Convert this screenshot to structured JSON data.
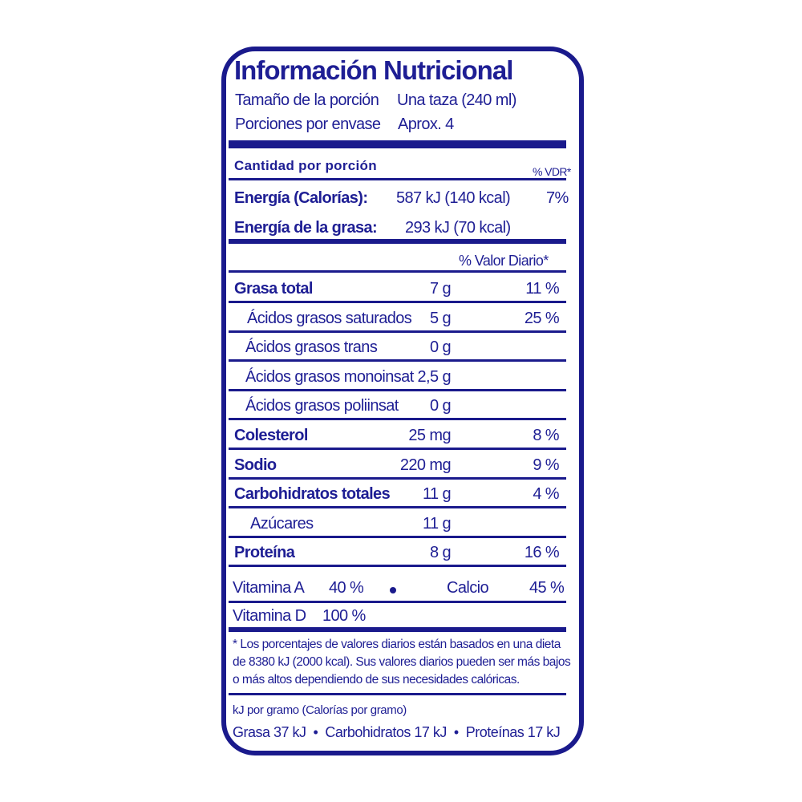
{
  "title": "Información Nutricional",
  "serving": {
    "size_label": "Tamaño de la porción",
    "size_value": "Una taza (240 ml)",
    "per_container_label": "Porciones por envase",
    "per_container_value": "Aprox. 4"
  },
  "amount_header": {
    "label": "Cantidad por porción",
    "vdr": "% VDR*"
  },
  "energy": [
    {
      "label": "Energía (Calorías):",
      "value": "587 kJ (140 kcal)",
      "percent": "7%"
    },
    {
      "label": "Energía de la grasa:",
      "value": "293 kJ (70 kcal)"
    }
  ],
  "daily_value_header": "% Valor Diario*",
  "nutrients": [
    {
      "label": "Grasa total",
      "amount": "7 g",
      "percent": "11 %",
      "bold": true
    },
    {
      "label": "Ácidos grasos saturados",
      "amount": "5 g",
      "percent": "25 %"
    },
    {
      "label": "Ácidos grasos trans",
      "amount": "0 g",
      "percent": ""
    },
    {
      "label": "Ácidos grasos monoinsat",
      "amount": "2,5 g",
      "percent": ""
    },
    {
      "label": "Ácidos grasos poliinsat",
      "amount": "0 g",
      "percent": ""
    },
    {
      "label": "Colesterol",
      "amount": "25 mg",
      "percent": "8 %",
      "bold": true
    },
    {
      "label": "Sodio",
      "amount": "220 mg",
      "percent": "9 %",
      "bold": true
    },
    {
      "label": "Carbohidratos totales",
      "amount": "11 g",
      "percent": "4 %",
      "bold": true
    },
    {
      "label": "Azúcares",
      "amount": "11 g",
      "percent": ""
    },
    {
      "label": "Proteína",
      "amount": "8 g",
      "percent": "16 %",
      "bold": true
    }
  ],
  "vitamins": {
    "a_label": "Vitamina A",
    "a_value": "40 %",
    "calcium_label": "Calcio",
    "calcium_value": "45 %",
    "d_label": "Vitamina D",
    "d_value": "100 %"
  },
  "footnote": [
    "* Los porcentajes de valores diarios están basados en una dieta",
    "de 8380 kJ (2000 kcal). Sus valores diarios pueden ser más bajos",
    "o más altos dependiendo de sus necesidades calóricas."
  ],
  "conversion": {
    "title": "kJ por gramo (Calorías por gramo)",
    "values": "Grasa 37 kJ  •  Carbohidratos 17 kJ  •  Proteínas 17 kJ"
  },
  "colors": {
    "ink": "#1e1e94",
    "border": "#1a1a8c"
  }
}
